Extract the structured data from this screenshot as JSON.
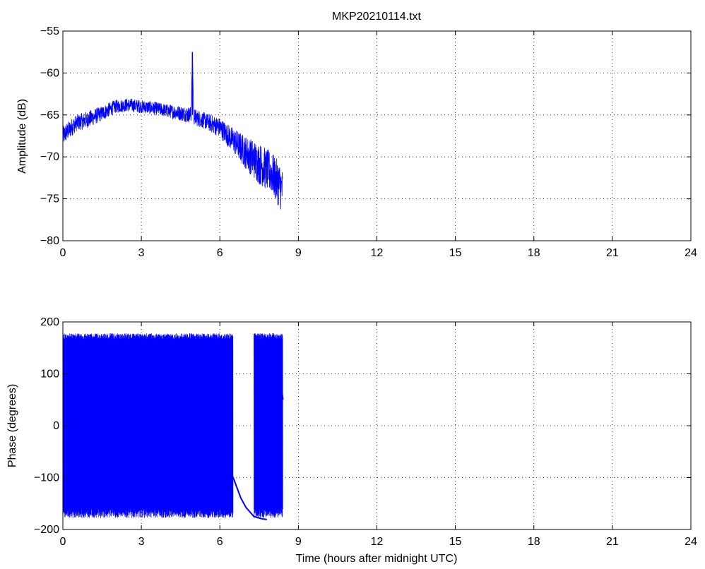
{
  "chart_data": [
    {
      "type": "line",
      "title": "MKP20210114.txt",
      "xlabel": "",
      "ylabel": "Amplitude (dB)",
      "xlim": [
        0,
        24
      ],
      "ylim": [
        -80,
        -55
      ],
      "xticks": [
        "0",
        "3",
        "6",
        "9",
        "12",
        "15",
        "18",
        "21",
        "24"
      ],
      "yticks": [
        "−80",
        "−75",
        "−70",
        "−65",
        "−60",
        "−55"
      ],
      "grid": true,
      "color": "#0000ff",
      "series": [
        {
          "x": [
            0,
            0.5,
            1,
            1.5,
            2,
            2.5,
            3,
            3.5,
            4,
            4.5,
            4.9,
            4.95,
            5,
            5.5,
            6,
            6.5,
            7,
            7.5,
            8,
            8.3,
            8.4
          ],
          "y": [
            -67.5,
            -66,
            -65.5,
            -64.8,
            -64,
            -63.8,
            -64,
            -64.2,
            -64.5,
            -64.8,
            -65,
            -57.5,
            -65.2,
            -65.8,
            -66.5,
            -68,
            -69.5,
            -70.8,
            -72,
            -73.5,
            -74
          ],
          "band": [
            1.2,
            1,
            1,
            0.9,
            0.8,
            0.8,
            0.8,
            0.8,
            0.8,
            0.9,
            1,
            0,
            1,
            1,
            1.2,
            1.5,
            2,
            2.5,
            2.5,
            2.8,
            2.5
          ]
        }
      ]
    },
    {
      "type": "line",
      "title": "",
      "xlabel": "Time (hours after midnight UTC)",
      "ylabel": "Phase (degrees)",
      "xlim": [
        0,
        24
      ],
      "ylim": [
        -200,
        200
      ],
      "xticks": [
        "0",
        "3",
        "6",
        "9",
        "12",
        "15",
        "18",
        "21",
        "24"
      ],
      "yticks": [
        "−200",
        "−100",
        "0",
        "100",
        "200"
      ],
      "grid": true,
      "color": "#0000ff",
      "series": [
        {
          "wrap_segments": [
            [
              0,
              6.5
            ],
            [
              7.3,
              8.4
            ]
          ],
          "gaps": [
            [
              6.5,
              7.3
            ]
          ],
          "tail": {
            "x": [
              6.5,
              6.8,
              7.0,
              7.3,
              7.6,
              7.8
            ],
            "y": [
              -100,
              -140,
              -160,
              -175,
              -178,
              -180
            ]
          },
          "end": {
            "x": [
              8.0,
              8.2,
              8.4
            ],
            "y": [
              170,
              120,
              50
            ]
          }
        }
      ]
    }
  ]
}
